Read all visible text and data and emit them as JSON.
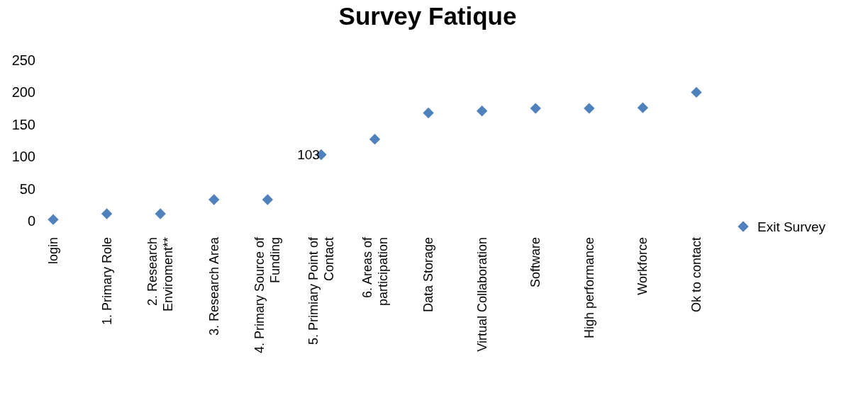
{
  "chart_data": {
    "type": "scatter",
    "title": "Survey Fatique",
    "categories": [
      "login",
      "1. Primary Role",
      "2. Research Enviroment**",
      "3. Research Area",
      "4. Primary Source of Funding",
      "5. Primiary Point of Contact",
      "6. Areas of participation",
      "Data Storage",
      "Virtual Collaboration",
      "Software",
      "High performance",
      "Workforce",
      "Ok to contact"
    ],
    "series": [
      {
        "name": "Exit Survey",
        "color": "#4f81bd",
        "values": [
          2,
          11,
          11,
          33,
          33,
          103,
          127,
          168,
          171,
          175,
          175,
          176,
          200
        ],
        "value_labels": [
          null,
          null,
          null,
          null,
          null,
          "103",
          null,
          null,
          null,
          null,
          null,
          null,
          null
        ]
      }
    ],
    "ylim": [
      0,
      250
    ],
    "yticks": [
      0,
      50,
      100,
      150,
      200,
      250
    ],
    "grid": false,
    "legend": "right",
    "marker": "diamond"
  }
}
